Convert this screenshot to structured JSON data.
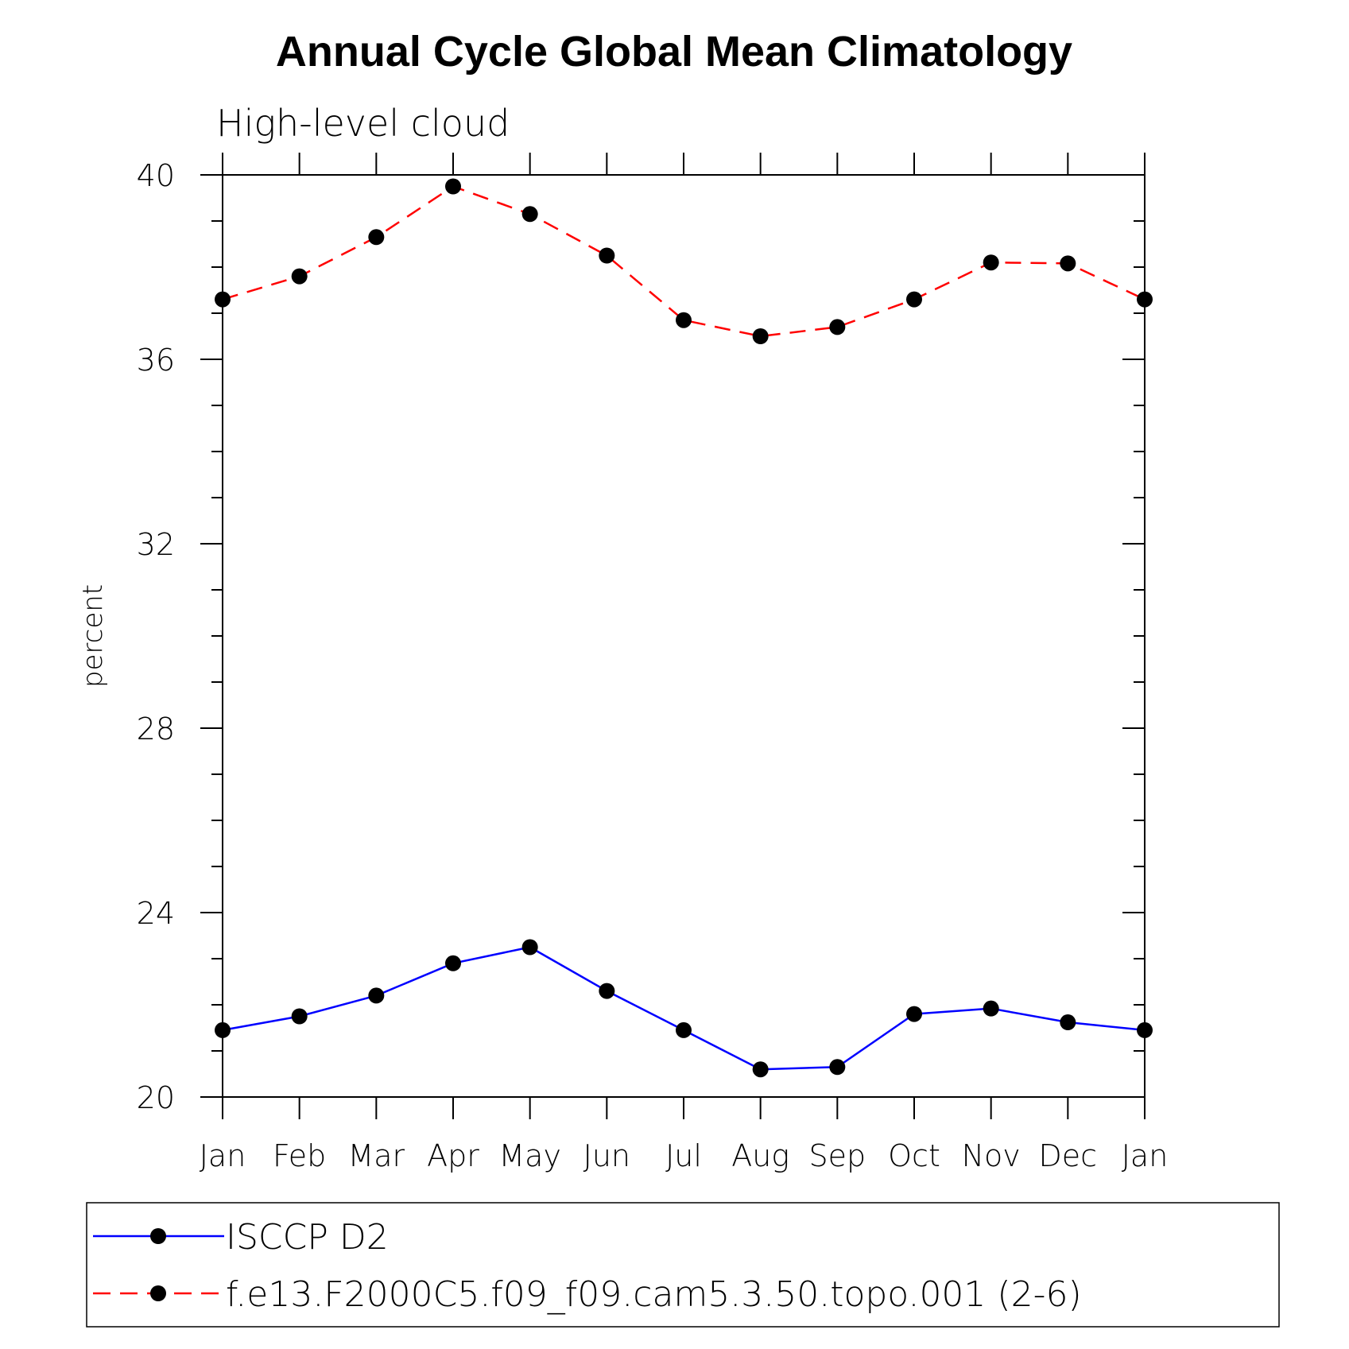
{
  "chart_data": {
    "type": "line",
    "title": "Annual Cycle Global Mean Climatology",
    "subtitle": "High-level cloud",
    "ylabel": "percent",
    "xlabel": "",
    "categories": [
      "Jan",
      "Feb",
      "Mar",
      "Apr",
      "May",
      "Jun",
      "Jul",
      "Aug",
      "Sep",
      "Oct",
      "Nov",
      "Dec",
      "Jan"
    ],
    "ylim": [
      20,
      40
    ],
    "yticks": [
      "20",
      "24",
      "28",
      "32",
      "36",
      "40"
    ],
    "grid": false,
    "legend_position": "bottom",
    "series": [
      {
        "name": "ISCCP D2",
        "color": "#0000ff",
        "line_style": "solid",
        "marker": "filled-circle",
        "values": [
          21.45,
          21.75,
          22.2,
          22.9,
          23.25,
          22.3,
          21.45,
          20.6,
          20.65,
          21.8,
          21.92,
          21.62,
          21.45
        ]
      },
      {
        "name": "f.e13.F2000C5.f09_f09.cam5.3.50.topo.001 (2-6)",
        "color": "#ff0000",
        "line_style": "dashed",
        "marker": "filled-circle",
        "values": [
          37.3,
          37.8,
          38.65,
          39.75,
          39.15,
          38.25,
          36.85,
          36.5,
          36.7,
          37.3,
          38.1,
          38.08,
          37.3
        ]
      }
    ]
  }
}
